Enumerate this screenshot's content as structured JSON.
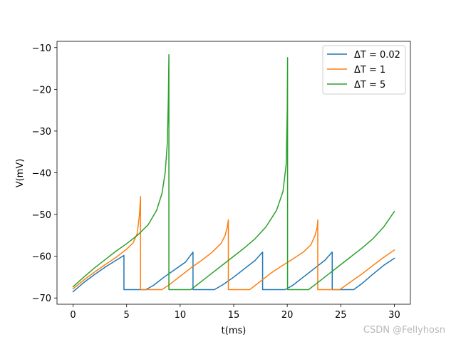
{
  "chart_data": {
    "type": "line",
    "title": "",
    "xlabel": "t(ms)",
    "ylabel": "V(mV)",
    "xlim": [
      -1.5,
      31.5
    ],
    "ylim": [
      -71.5,
      -8.5
    ],
    "xticks": [
      0,
      5,
      10,
      15,
      20,
      25,
      30
    ],
    "yticks": [
      -70,
      -60,
      -50,
      -40,
      -30,
      -20,
      -10
    ],
    "xtick_labels": [
      "0",
      "5",
      "10",
      "15",
      "20",
      "25",
      "30"
    ],
    "ytick_labels": [
      "−70",
      "−60",
      "−50",
      "−40",
      "−30",
      "−20",
      "−10"
    ],
    "grid": false,
    "legend_position": "top-right",
    "series": [
      {
        "name": "ΔT = 0.02",
        "color": "#1f77b4",
        "points": [
          [
            0,
            -68.5
          ],
          [
            1,
            -66.3
          ],
          [
            2,
            -64.4
          ],
          [
            3,
            -62.6
          ],
          [
            4,
            -61.0
          ],
          [
            4.75,
            -59.8
          ],
          [
            4.75,
            -68.0
          ],
          [
            6.8,
            -68.0
          ],
          [
            7.5,
            -67.0
          ],
          [
            8.5,
            -65.0
          ],
          [
            9.5,
            -63.2
          ],
          [
            10.5,
            -61.4
          ],
          [
            11.2,
            -59.0
          ],
          [
            11.2,
            -68.0
          ],
          [
            13.2,
            -68.0
          ],
          [
            14,
            -66.8
          ],
          [
            15,
            -65.0
          ],
          [
            16,
            -63.0
          ],
          [
            17,
            -61.0
          ],
          [
            17.7,
            -59.0
          ],
          [
            17.7,
            -68.0
          ],
          [
            19.8,
            -68.0
          ],
          [
            20.5,
            -67.0
          ],
          [
            21.5,
            -65.0
          ],
          [
            22.5,
            -63.0
          ],
          [
            23.5,
            -61.0
          ],
          [
            24.2,
            -59.0
          ],
          [
            24.2,
            -68.0
          ],
          [
            26.2,
            -68.0
          ],
          [
            27,
            -66.5
          ],
          [
            28,
            -64.3
          ],
          [
            29,
            -62.2
          ],
          [
            30,
            -60.5
          ]
        ]
      },
      {
        "name": "ΔT = 1",
        "color": "#ff7f0e",
        "points": [
          [
            0,
            -67.8
          ],
          [
            1,
            -65.7
          ],
          [
            2,
            -63.8
          ],
          [
            3,
            -62.0
          ],
          [
            4,
            -60.3
          ],
          [
            5,
            -58.3
          ],
          [
            5.6,
            -56.8
          ],
          [
            6.0,
            -54.5
          ],
          [
            6.2,
            -50.0
          ],
          [
            6.3,
            -45.7
          ],
          [
            6.3,
            -68.0
          ],
          [
            8.3,
            -68.0
          ],
          [
            9,
            -66.8
          ],
          [
            10,
            -64.8
          ],
          [
            11,
            -62.8
          ],
          [
            12,
            -61.0
          ],
          [
            13,
            -59.0
          ],
          [
            13.8,
            -57.0
          ],
          [
            14.2,
            -55.0
          ],
          [
            14.4,
            -53.0
          ],
          [
            14.5,
            -51.3
          ],
          [
            14.5,
            -68.0
          ],
          [
            16.5,
            -68.0
          ],
          [
            17.5,
            -66.0
          ],
          [
            18.5,
            -64.0
          ],
          [
            19.5,
            -62.3
          ],
          [
            20.5,
            -60.7
          ],
          [
            21.5,
            -59.0
          ],
          [
            22.2,
            -57.3
          ],
          [
            22.6,
            -55.0
          ],
          [
            22.8,
            -53.0
          ],
          [
            22.85,
            -51.3
          ],
          [
            22.85,
            -68.0
          ],
          [
            24.9,
            -68.0
          ],
          [
            26,
            -66.0
          ],
          [
            27,
            -64.2
          ],
          [
            28,
            -62.2
          ],
          [
            29,
            -60.3
          ],
          [
            30,
            -58.5
          ]
        ]
      },
      {
        "name": "ΔT = 5",
        "color": "#2ca02c",
        "points": [
          [
            0,
            -67.3
          ],
          [
            1,
            -65.0
          ],
          [
            2,
            -62.8
          ],
          [
            3,
            -60.8
          ],
          [
            4,
            -58.8
          ],
          [
            5,
            -57.0
          ],
          [
            6,
            -55.0
          ],
          [
            7,
            -52.5
          ],
          [
            7.8,
            -49.0
          ],
          [
            8.3,
            -45.0
          ],
          [
            8.6,
            -40.0
          ],
          [
            8.8,
            -33.0
          ],
          [
            8.9,
            -22.0
          ],
          [
            8.95,
            -11.7
          ],
          [
            8.95,
            -68.0
          ],
          [
            11,
            -68.0
          ],
          [
            12,
            -66.0
          ],
          [
            13,
            -64.0
          ],
          [
            14,
            -62.0
          ],
          [
            15,
            -60.0
          ],
          [
            16,
            -58.0
          ],
          [
            17,
            -55.8
          ],
          [
            18,
            -53.0
          ],
          [
            19,
            -49.0
          ],
          [
            19.6,
            -44.5
          ],
          [
            19.9,
            -38.0
          ],
          [
            20.0,
            -25.0
          ],
          [
            20.03,
            -12.4
          ],
          [
            20.03,
            -68.0
          ],
          [
            22,
            -68.0
          ],
          [
            23,
            -66.0
          ],
          [
            24,
            -64.0
          ],
          [
            25,
            -62.0
          ],
          [
            26,
            -60.0
          ],
          [
            27,
            -58.0
          ],
          [
            28,
            -55.8
          ],
          [
            29,
            -53.0
          ],
          [
            30,
            -49.3
          ]
        ]
      }
    ]
  },
  "legend": {
    "items": [
      {
        "label": "ΔT = 0.02",
        "color": "#1f77b4"
      },
      {
        "label": "ΔT = 1",
        "color": "#ff7f0e"
      },
      {
        "label": "ΔT = 5",
        "color": "#2ca02c"
      }
    ]
  },
  "watermark": "CSDN @Fellyhosn"
}
